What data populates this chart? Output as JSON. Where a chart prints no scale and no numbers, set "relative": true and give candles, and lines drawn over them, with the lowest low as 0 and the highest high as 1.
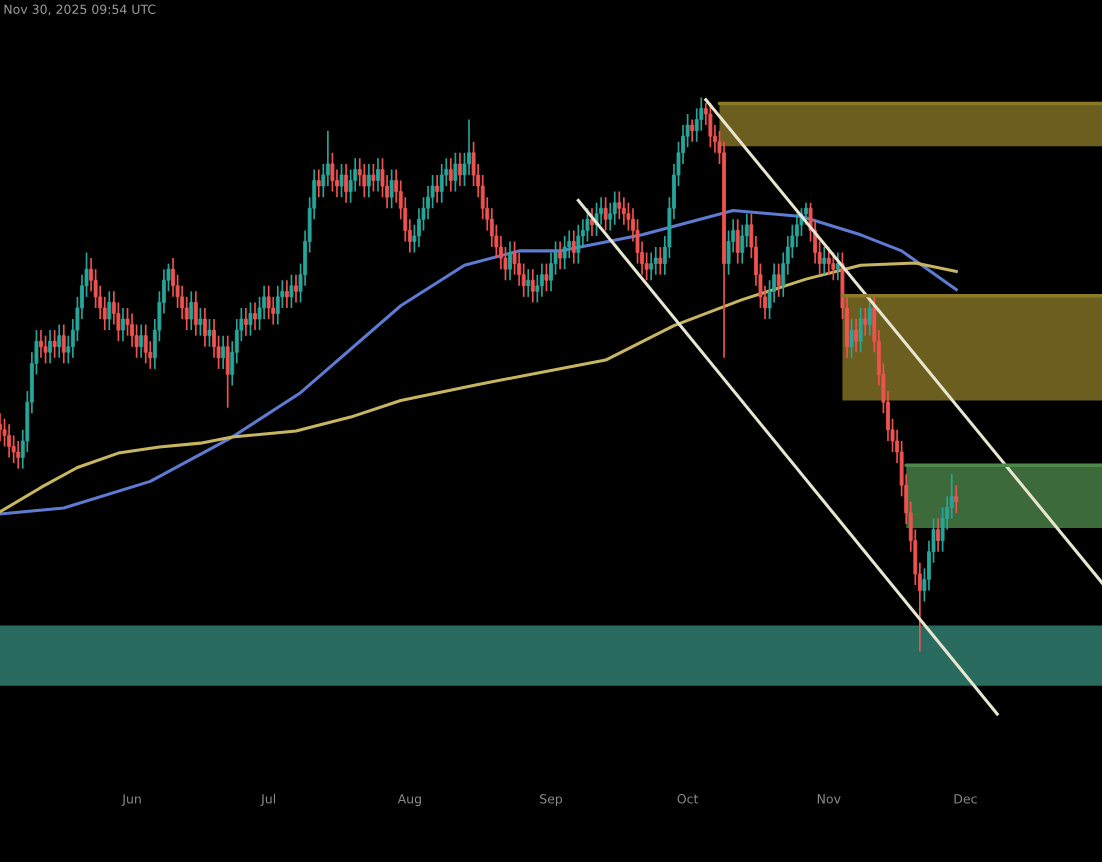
{
  "chart_data": {
    "type": "candlestick",
    "relative": true,
    "annotations": [
      "Nov 30, 2025 09:54 UTC"
    ],
    "grid": false,
    "tick_labels": "x",
    "colors": [
      "#ef5350",
      "#ef5350",
      "#ef5350",
      "#ef5350",
      "#ef5350",
      "#26a69a",
      "#26a69a",
      "#26a69a",
      "#26a69a",
      "#ef5350",
      "#ef5350",
      "#26a69a",
      "#ef5350",
      "#26a69a",
      "#ef5350",
      "#26a69a",
      "#26a69a",
      "#26a69a",
      "#26a69a",
      "#26a69a",
      "#ef5350",
      "#ef5350",
      "#ef5350",
      "#ef5350",
      "#26a69a",
      "#ef5350",
      "#ef5350",
      "#26a69a",
      "#ef5350",
      "#ef5350",
      "#ef5350",
      "#26a69a",
      "#ef5350",
      "#ef5350",
      "#26a69a",
      "#26a69a",
      "#26a69a",
      "#26a69a",
      "#ef5350",
      "#ef5350",
      "#ef5350",
      "#ef5350",
      "#26a69a",
      "#ef5350",
      "#26a69a",
      "#ef5350",
      "#26a69a",
      "#ef5350",
      "#ef5350",
      "#26a69a",
      "#ef5350",
      "#26a69a",
      "#26a69a",
      "#26a69a",
      "#ef5350",
      "#26a69a",
      "#ef5350",
      "#26a69a",
      "#26a69a",
      "#ef5350",
      "#ef5350",
      "#26a69a",
      "#26a69a",
      "#ef5350",
      "#26a69a",
      "#ef5350",
      "#26a69a",
      "#26a69a",
      "#26a69a",
      "#26a69a",
      "#ef5350",
      "#26a69a",
      "#26a69a",
      "#ef5350",
      "#ef5350",
      "#26a69a",
      "#ef5350",
      "#26a69a",
      "#26a69a",
      "#ef5350",
      "#ef5350",
      "#26a69a",
      "#ef5350",
      "#26a69a",
      "#ef5350",
      "#ef5350",
      "#26a69a",
      "#ef5350",
      "#ef5350",
      "#ef5350",
      "#ef5350",
      "#26a69a",
      "#26a69a",
      "#26a69a",
      "#26a69a",
      "#26a69a",
      "#ef5350",
      "#26a69a",
      "#26a69a",
      "#ef5350",
      "#26a69a",
      "#ef5350",
      "#26a69a",
      "#26a69a",
      "#ef5350",
      "#ef5350",
      "#ef5350",
      "#ef5350",
      "#ef5350",
      "#ef5350",
      "#ef5350",
      "#ef5350",
      "#26a69a",
      "#ef5350",
      "#ef5350",
      "#ef5350",
      "#26a69a",
      "#ef5350",
      "#26a69a",
      "#26a69a",
      "#ef5350",
      "#26a69a",
      "#26a69a",
      "#ef5350",
      "#26a69a",
      "#26a69a",
      "#ef5350",
      "#26a69a",
      "#26a69a",
      "#26a69a",
      "#ef5350",
      "#26a69a",
      "#26a69a",
      "#ef5350",
      "#26a69a",
      "#26a69a",
      "#ef5350",
      "#ef5350",
      "#ef5350",
      "#ef5350",
      "#ef5350",
      "#ef5350",
      "#ef5350",
      "#26a69a",
      "#26a69a",
      "#ef5350",
      "#26a69a",
      "#26a69a",
      "#26a69a",
      "#26a69a",
      "#26a69a",
      "#26a69a",
      "#ef5350",
      "#26a69a",
      "#26a69a",
      "#ef5350",
      "#ef5350",
      "#ef5350",
      "#ef5350",
      "#ef5350",
      "#26a69a",
      "#26a69a",
      "#ef5350",
      "#26a69a",
      "#26a69a",
      "#ef5350",
      "#ef5350",
      "#ef5350",
      "#ef5350",
      "#26a69a",
      "#26a69a",
      "#ef5350",
      "#26a69a",
      "#26a69a",
      "#26a69a",
      "#26a69a",
      "#26a69a",
      "#26a69a",
      "#ef5350",
      "#ef5350",
      "#ef5350",
      "#26a69a",
      "#ef5350",
      "#ef5350",
      "#26a69a",
      "#ef5350",
      "#ef5350",
      "#26a69a",
      "#ef5350",
      "#26a69a",
      "#ef5350",
      "#26a69a",
      "#ef5350",
      "#ef5350",
      "#ef5350",
      "#ef5350",
      "#ef5350",
      "#ef5350",
      "#ef5350",
      "#ef5350",
      "#ef5350",
      "#ef5350",
      "#ef5350",
      "#26a69a",
      "#26a69a",
      "#26a69a",
      "#ef5350",
      "#26a69a",
      "#26a69a",
      "#26a69a",
      "#ef5350"
    ],
    "xlim": [
      "2025-05-03",
      "2025-12-31"
    ],
    "xticks": [
      {
        "value": "2025-06-01",
        "label": "Jun"
      },
      {
        "value": "2025-07-01",
        "label": "Jul"
      },
      {
        "value": "2025-08-01",
        "label": "Aug"
      },
      {
        "value": "2025-09-01",
        "label": "Sep"
      },
      {
        "value": "2025-10-01",
        "label": "Oct"
      },
      {
        "value": "2025-11-01",
        "label": "Nov"
      },
      {
        "value": "2025-12-01",
        "label": "Dec"
      }
    ],
    "x": [
      "2025-05-03",
      "2025-05-04",
      "2025-05-05",
      "2025-05-06",
      "2025-05-07",
      "2025-05-08",
      "2025-05-09",
      "2025-05-10",
      "2025-05-11",
      "2025-05-12",
      "2025-05-13",
      "2025-05-14",
      "2025-05-15",
      "2025-05-16",
      "2025-05-17",
      "2025-05-18",
      "2025-05-19",
      "2025-05-20",
      "2025-05-21",
      "2025-05-22",
      "2025-05-23",
      "2025-05-24",
      "2025-05-25",
      "2025-05-26",
      "2025-05-27",
      "2025-05-28",
      "2025-05-29",
      "2025-05-30",
      "2025-05-31",
      "2025-06-01",
      "2025-06-02",
      "2025-06-03",
      "2025-06-04",
      "2025-06-05",
      "2025-06-06",
      "2025-06-07",
      "2025-06-08",
      "2025-06-09",
      "2025-06-10",
      "2025-06-11",
      "2025-06-12",
      "2025-06-13",
      "2025-06-14",
      "2025-06-15",
      "2025-06-16",
      "2025-06-17",
      "2025-06-18",
      "2025-06-19",
      "2025-06-20",
      "2025-06-21",
      "2025-06-22",
      "2025-06-23",
      "2025-06-24",
      "2025-06-25",
      "2025-06-26",
      "2025-06-27",
      "2025-06-28",
      "2025-06-29",
      "2025-06-30",
      "2025-07-01",
      "2025-07-02",
      "2025-07-03",
      "2025-07-04",
      "2025-07-05",
      "2025-07-06",
      "2025-07-07",
      "2025-07-08",
      "2025-07-09",
      "2025-07-10",
      "2025-07-11",
      "2025-07-12",
      "2025-07-13",
      "2025-07-14",
      "2025-07-15",
      "2025-07-16",
      "2025-07-17",
      "2025-07-18",
      "2025-07-19",
      "2025-07-20",
      "2025-07-21",
      "2025-07-22",
      "2025-07-23",
      "2025-07-24",
      "2025-07-25",
      "2025-07-26",
      "2025-07-27",
      "2025-07-28",
      "2025-07-29",
      "2025-07-30",
      "2025-07-31",
      "2025-08-01",
      "2025-08-02",
      "2025-08-03",
      "2025-08-04",
      "2025-08-05",
      "2025-08-06",
      "2025-08-07",
      "2025-08-08",
      "2025-08-09",
      "2025-08-10",
      "2025-08-11",
      "2025-08-12",
      "2025-08-13",
      "2025-08-14",
      "2025-08-15",
      "2025-08-16",
      "2025-08-17",
      "2025-08-18",
      "2025-08-19",
      "2025-08-20",
      "2025-08-21",
      "2025-08-22",
      "2025-08-23",
      "2025-08-24",
      "2025-08-25",
      "2025-08-26",
      "2025-08-27",
      "2025-08-28",
      "2025-08-29",
      "2025-08-30",
      "2025-08-31",
      "2025-09-01",
      "2025-09-02",
      "2025-09-03",
      "2025-09-04",
      "2025-09-05",
      "2025-09-06",
      "2025-09-07",
      "2025-09-08",
      "2025-09-09",
      "2025-09-10",
      "2025-09-11",
      "2025-09-12",
      "2025-09-13",
      "2025-09-14",
      "2025-09-15",
      "2025-09-16",
      "2025-09-17",
      "2025-09-18",
      "2025-09-19",
      "2025-09-20",
      "2025-09-21",
      "2025-09-22",
      "2025-09-23",
      "2025-09-24",
      "2025-09-25",
      "2025-09-26",
      "2025-09-27",
      "2025-09-28",
      "2025-09-29",
      "2025-09-30",
      "2025-10-01",
      "2025-10-02",
      "2025-10-03",
      "2025-10-04",
      "2025-10-05",
      "2025-10-06",
      "2025-10-07",
      "2025-10-08",
      "2025-10-09",
      "2025-10-10",
      "2025-10-11",
      "2025-10-12",
      "2025-10-13",
      "2025-10-14",
      "2025-10-15",
      "2025-10-16",
      "2025-10-17",
      "2025-10-18",
      "2025-10-19",
      "2025-10-20",
      "2025-10-21",
      "2025-10-22",
      "2025-10-23",
      "2025-10-24",
      "2025-10-25",
      "2025-10-26",
      "2025-10-27",
      "2025-10-28",
      "2025-10-29",
      "2025-10-30",
      "2025-10-31",
      "2025-11-01",
      "2025-11-02",
      "2025-11-03",
      "2025-11-04",
      "2025-11-05",
      "2025-11-06",
      "2025-11-07",
      "2025-11-08",
      "2025-11-09",
      "2025-11-10",
      "2025-11-11",
      "2025-11-12",
      "2025-11-13",
      "2025-11-14",
      "2025-11-15",
      "2025-11-16",
      "2025-11-17",
      "2025-11-18",
      "2025-11-19",
      "2025-11-20",
      "2025-11-21",
      "2025-11-22",
      "2025-11-23",
      "2025-11-24",
      "2025-11-25",
      "2025-11-26",
      "2025-11-27",
      "2025-11-28",
      "2025-11-29"
    ],
    "ohlc": [
      [
        0.41,
        0.43,
        0.38,
        0.4
      ],
      [
        0.4,
        0.42,
        0.37,
        0.39
      ],
      [
        0.39,
        0.41,
        0.35,
        0.37
      ],
      [
        0.37,
        0.39,
        0.34,
        0.36
      ],
      [
        0.36,
        0.38,
        0.33,
        0.35
      ],
      [
        0.35,
        0.4,
        0.33,
        0.38
      ],
      [
        0.38,
        0.47,
        0.36,
        0.45
      ],
      [
        0.45,
        0.54,
        0.43,
        0.52
      ],
      [
        0.52,
        0.58,
        0.5,
        0.56
      ],
      [
        0.56,
        0.58,
        0.53,
        0.55
      ],
      [
        0.55,
        0.57,
        0.52,
        0.54
      ],
      [
        0.54,
        0.58,
        0.52,
        0.56
      ],
      [
        0.56,
        0.58,
        0.53,
        0.55
      ],
      [
        0.55,
        0.59,
        0.53,
        0.57
      ],
      [
        0.57,
        0.59,
        0.52,
        0.54
      ],
      [
        0.54,
        0.57,
        0.52,
        0.55
      ],
      [
        0.55,
        0.6,
        0.53,
        0.58
      ],
      [
        0.58,
        0.64,
        0.56,
        0.62
      ],
      [
        0.62,
        0.68,
        0.6,
        0.66
      ],
      [
        0.66,
        0.72,
        0.64,
        0.69
      ],
      [
        0.69,
        0.71,
        0.65,
        0.67
      ],
      [
        0.67,
        0.69,
        0.62,
        0.64
      ],
      [
        0.64,
        0.66,
        0.6,
        0.62
      ],
      [
        0.62,
        0.64,
        0.58,
        0.6
      ],
      [
        0.6,
        0.65,
        0.58,
        0.63
      ],
      [
        0.63,
        0.65,
        0.59,
        0.61
      ],
      [
        0.61,
        0.63,
        0.56,
        0.58
      ],
      [
        0.58,
        0.62,
        0.56,
        0.6
      ],
      [
        0.6,
        0.62,
        0.57,
        0.59
      ],
      [
        0.59,
        0.61,
        0.55,
        0.57
      ],
      [
        0.57,
        0.59,
        0.53,
        0.55
      ],
      [
        0.55,
        0.59,
        0.53,
        0.57
      ],
      [
        0.57,
        0.59,
        0.52,
        0.54
      ],
      [
        0.54,
        0.56,
        0.51,
        0.53
      ],
      [
        0.53,
        0.6,
        0.51,
        0.58
      ],
      [
        0.58,
        0.65,
        0.56,
        0.63
      ],
      [
        0.63,
        0.69,
        0.61,
        0.67
      ],
      [
        0.67,
        0.7,
        0.65,
        0.69
      ],
      [
        0.69,
        0.71,
        0.64,
        0.66
      ],
      [
        0.66,
        0.68,
        0.62,
        0.64
      ],
      [
        0.64,
        0.66,
        0.6,
        0.62
      ],
      [
        0.62,
        0.64,
        0.58,
        0.6
      ],
      [
        0.6,
        0.65,
        0.58,
        0.63
      ],
      [
        0.63,
        0.65,
        0.57,
        0.59
      ],
      [
        0.59,
        0.62,
        0.57,
        0.6
      ],
      [
        0.6,
        0.62,
        0.55,
        0.57
      ],
      [
        0.57,
        0.6,
        0.55,
        0.58
      ],
      [
        0.58,
        0.6,
        0.53,
        0.55
      ],
      [
        0.55,
        0.57,
        0.51,
        0.53
      ],
      [
        0.53,
        0.57,
        0.51,
        0.55
      ],
      [
        0.55,
        0.57,
        0.44,
        0.5
      ],
      [
        0.5,
        0.56,
        0.48,
        0.54
      ],
      [
        0.54,
        0.6,
        0.52,
        0.58
      ],
      [
        0.58,
        0.62,
        0.56,
        0.6
      ],
      [
        0.6,
        0.62,
        0.57,
        0.59
      ],
      [
        0.59,
        0.63,
        0.57,
        0.61
      ],
      [
        0.61,
        0.63,
        0.58,
        0.6
      ],
      [
        0.6,
        0.64,
        0.58,
        0.62
      ],
      [
        0.62,
        0.66,
        0.6,
        0.64
      ],
      [
        0.64,
        0.66,
        0.6,
        0.62
      ],
      [
        0.62,
        0.64,
        0.59,
        0.61
      ],
      [
        0.61,
        0.66,
        0.59,
        0.64
      ],
      [
        0.64,
        0.67,
        0.62,
        0.65
      ],
      [
        0.65,
        0.67,
        0.62,
        0.64
      ],
      [
        0.64,
        0.68,
        0.62,
        0.66
      ],
      [
        0.66,
        0.68,
        0.63,
        0.65
      ],
      [
        0.65,
        0.7,
        0.63,
        0.68
      ],
      [
        0.68,
        0.76,
        0.66,
        0.74
      ],
      [
        0.74,
        0.82,
        0.72,
        0.8
      ],
      [
        0.8,
        0.87,
        0.78,
        0.85
      ],
      [
        0.85,
        0.87,
        0.82,
        0.84
      ],
      [
        0.84,
        0.88,
        0.82,
        0.86
      ],
      [
        0.86,
        0.94,
        0.84,
        0.88
      ],
      [
        0.88,
        0.9,
        0.83,
        0.85
      ],
      [
        0.85,
        0.87,
        0.82,
        0.84
      ],
      [
        0.84,
        0.88,
        0.82,
        0.86
      ],
      [
        0.86,
        0.88,
        0.81,
        0.83
      ],
      [
        0.83,
        0.87,
        0.81,
        0.85
      ],
      [
        0.85,
        0.89,
        0.83,
        0.87
      ],
      [
        0.87,
        0.89,
        0.84,
        0.86
      ],
      [
        0.86,
        0.88,
        0.82,
        0.84
      ],
      [
        0.84,
        0.88,
        0.82,
        0.86
      ],
      [
        0.86,
        0.88,
        0.83,
        0.85
      ],
      [
        0.85,
        0.89,
        0.83,
        0.87
      ],
      [
        0.87,
        0.89,
        0.82,
        0.84
      ],
      [
        0.84,
        0.86,
        0.8,
        0.82
      ],
      [
        0.82,
        0.87,
        0.8,
        0.85
      ],
      [
        0.85,
        0.87,
        0.81,
        0.83
      ],
      [
        0.83,
        0.85,
        0.78,
        0.8
      ],
      [
        0.8,
        0.82,
        0.74,
        0.76
      ],
      [
        0.76,
        0.78,
        0.72,
        0.74
      ],
      [
        0.74,
        0.77,
        0.72,
        0.75
      ],
      [
        0.75,
        0.8,
        0.73,
        0.78
      ],
      [
        0.78,
        0.82,
        0.76,
        0.8
      ],
      [
        0.8,
        0.84,
        0.78,
        0.82
      ],
      [
        0.82,
        0.86,
        0.8,
        0.84
      ],
      [
        0.84,
        0.86,
        0.81,
        0.83
      ],
      [
        0.83,
        0.88,
        0.81,
        0.86
      ],
      [
        0.86,
        0.89,
        0.84,
        0.87
      ],
      [
        0.87,
        0.89,
        0.83,
        0.85
      ],
      [
        0.85,
        0.9,
        0.83,
        0.88
      ],
      [
        0.88,
        0.9,
        0.84,
        0.86
      ],
      [
        0.86,
        0.9,
        0.84,
        0.88
      ],
      [
        0.88,
        0.96,
        0.86,
        0.9
      ],
      [
        0.9,
        0.92,
        0.84,
        0.86
      ],
      [
        0.86,
        0.88,
        0.82,
        0.84
      ],
      [
        0.84,
        0.86,
        0.78,
        0.8
      ],
      [
        0.8,
        0.82,
        0.76,
        0.78
      ],
      [
        0.78,
        0.8,
        0.73,
        0.75
      ],
      [
        0.75,
        0.77,
        0.71,
        0.73
      ],
      [
        0.73,
        0.75,
        0.69,
        0.71
      ],
      [
        0.71,
        0.73,
        0.67,
        0.69
      ],
      [
        0.69,
        0.74,
        0.67,
        0.72
      ],
      [
        0.72,
        0.74,
        0.68,
        0.7
      ],
      [
        0.7,
        0.72,
        0.66,
        0.68
      ],
      [
        0.68,
        0.7,
        0.64,
        0.66
      ],
      [
        0.66,
        0.69,
        0.64,
        0.67
      ],
      [
        0.67,
        0.69,
        0.63,
        0.65
      ],
      [
        0.65,
        0.68,
        0.63,
        0.66
      ],
      [
        0.66,
        0.7,
        0.64,
        0.68
      ],
      [
        0.68,
        0.7,
        0.65,
        0.67
      ],
      [
        0.67,
        0.72,
        0.65,
        0.7
      ],
      [
        0.7,
        0.74,
        0.68,
        0.72
      ],
      [
        0.72,
        0.74,
        0.69,
        0.71
      ],
      [
        0.71,
        0.75,
        0.69,
        0.73
      ],
      [
        0.73,
        0.76,
        0.71,
        0.74
      ],
      [
        0.74,
        0.76,
        0.7,
        0.72
      ],
      [
        0.72,
        0.77,
        0.7,
        0.75
      ],
      [
        0.75,
        0.78,
        0.73,
        0.76
      ],
      [
        0.76,
        0.8,
        0.74,
        0.78
      ],
      [
        0.78,
        0.8,
        0.75,
        0.77
      ],
      [
        0.77,
        0.81,
        0.75,
        0.79
      ],
      [
        0.79,
        0.82,
        0.77,
        0.8
      ],
      [
        0.8,
        0.82,
        0.76,
        0.78
      ],
      [
        0.78,
        0.81,
        0.76,
        0.79
      ],
      [
        0.79,
        0.83,
        0.77,
        0.81
      ],
      [
        0.81,
        0.83,
        0.78,
        0.8
      ],
      [
        0.8,
        0.82,
        0.77,
        0.79
      ],
      [
        0.79,
        0.81,
        0.76,
        0.78
      ],
      [
        0.78,
        0.8,
        0.74,
        0.76
      ],
      [
        0.76,
        0.78,
        0.7,
        0.72
      ],
      [
        0.72,
        0.74,
        0.68,
        0.7
      ],
      [
        0.7,
        0.72,
        0.67,
        0.69
      ],
      [
        0.69,
        0.72,
        0.67,
        0.7
      ],
      [
        0.7,
        0.73,
        0.68,
        0.71
      ],
      [
        0.71,
        0.73,
        0.68,
        0.7
      ],
      [
        0.7,
        0.75,
        0.68,
        0.73
      ],
      [
        0.73,
        0.82,
        0.71,
        0.8
      ],
      [
        0.8,
        0.88,
        0.78,
        0.86
      ],
      [
        0.86,
        0.92,
        0.84,
        0.9
      ],
      [
        0.9,
        0.95,
        0.88,
        0.93
      ],
      [
        0.93,
        0.97,
        0.91,
        0.95
      ],
      [
        0.95,
        0.96,
        0.92,
        0.94
      ],
      [
        0.94,
        0.98,
        0.92,
        0.96
      ],
      [
        0.96,
        1.0,
        0.94,
        0.98
      ],
      [
        0.98,
        0.99,
        0.95,
        0.97
      ],
      [
        0.97,
        0.99,
        0.91,
        0.93
      ],
      [
        0.93,
        0.95,
        0.9,
        0.92
      ],
      [
        0.92,
        0.94,
        0.88,
        0.9
      ],
      [
        0.9,
        0.92,
        0.53,
        0.7
      ],
      [
        0.7,
        0.76,
        0.68,
        0.74
      ],
      [
        0.74,
        0.78,
        0.72,
        0.76
      ],
      [
        0.76,
        0.78,
        0.7,
        0.72
      ],
      [
        0.72,
        0.77,
        0.7,
        0.75
      ],
      [
        0.75,
        0.79,
        0.73,
        0.77
      ],
      [
        0.77,
        0.79,
        0.71,
        0.73
      ],
      [
        0.73,
        0.75,
        0.66,
        0.68
      ],
      [
        0.68,
        0.7,
        0.62,
        0.64
      ],
      [
        0.64,
        0.66,
        0.6,
        0.62
      ],
      [
        0.62,
        0.67,
        0.6,
        0.65
      ],
      [
        0.65,
        0.7,
        0.63,
        0.68
      ],
      [
        0.68,
        0.7,
        0.64,
        0.66
      ],
      [
        0.66,
        0.72,
        0.64,
        0.7
      ],
      [
        0.7,
        0.75,
        0.68,
        0.73
      ],
      [
        0.73,
        0.77,
        0.71,
        0.75
      ],
      [
        0.75,
        0.79,
        0.73,
        0.77
      ],
      [
        0.77,
        0.8,
        0.75,
        0.79
      ],
      [
        0.79,
        0.81,
        0.77,
        0.8
      ],
      [
        0.8,
        0.81,
        0.74,
        0.76
      ],
      [
        0.76,
        0.78,
        0.7,
        0.72
      ],
      [
        0.72,
        0.74,
        0.68,
        0.7
      ],
      [
        0.7,
        0.73,
        0.68,
        0.71
      ],
      [
        0.71,
        0.73,
        0.68,
        0.7
      ],
      [
        0.7,
        0.72,
        0.67,
        0.69
      ],
      [
        0.69,
        0.72,
        0.67,
        0.7
      ],
      [
        0.7,
        0.72,
        0.6,
        0.62
      ],
      [
        0.62,
        0.64,
        0.53,
        0.55
      ],
      [
        0.55,
        0.6,
        0.53,
        0.58
      ],
      [
        0.58,
        0.6,
        0.54,
        0.56
      ],
      [
        0.56,
        0.62,
        0.54,
        0.6
      ],
      [
        0.6,
        0.62,
        0.57,
        0.59
      ],
      [
        0.59,
        0.64,
        0.57,
        0.62
      ],
      [
        0.62,
        0.64,
        0.54,
        0.56
      ],
      [
        0.56,
        0.58,
        0.48,
        0.5
      ],
      [
        0.5,
        0.52,
        0.43,
        0.45
      ],
      [
        0.45,
        0.47,
        0.38,
        0.4
      ],
      [
        0.4,
        0.42,
        0.36,
        0.38
      ],
      [
        0.38,
        0.4,
        0.34,
        0.36
      ],
      [
        0.36,
        0.38,
        0.28,
        0.3
      ],
      [
        0.3,
        0.32,
        0.23,
        0.25
      ],
      [
        0.25,
        0.27,
        0.18,
        0.2
      ],
      [
        0.2,
        0.22,
        0.12,
        0.14
      ],
      [
        0.14,
        0.16,
        0.0,
        0.11
      ],
      [
        0.11,
        0.15,
        0.09,
        0.13
      ],
      [
        0.13,
        0.2,
        0.11,
        0.18
      ],
      [
        0.18,
        0.24,
        0.16,
        0.22
      ],
      [
        0.22,
        0.24,
        0.18,
        0.2
      ],
      [
        0.2,
        0.26,
        0.18,
        0.24
      ],
      [
        0.24,
        0.28,
        0.22,
        0.26
      ],
      [
        0.26,
        0.32,
        0.24,
        0.28
      ],
      [
        0.28,
        0.3,
        0.25,
        0.27
      ]
    ],
    "bands": [
      {
        "axis": "y",
        "from": -0.062,
        "to": 0.047,
        "color": "#2a6b5f"
      }
    ],
    "series": [
      {
        "type": "line",
        "color": "#5c7bd1",
        "x": [
          "2025-05-03",
          "2025-05-17",
          "2025-06-05",
          "2025-06-23",
          "2025-07-08",
          "2025-07-30",
          "2025-08-13",
          "2025-08-25",
          "2025-09-03",
          "2025-09-21",
          "2025-10-11",
          "2025-10-26",
          "2025-11-08",
          "2025-11-17",
          "2025-11-29"
        ],
        "values": [
          0.248,
          0.259,
          0.307,
          0.387,
          0.467,
          0.624,
          0.697,
          0.723,
          0.723,
          0.752,
          0.796,
          0.785,
          0.752,
          0.723,
          0.653
        ]
      },
      {
        "type": "line",
        "color": "#c8b560",
        "x": [
          "2025-05-03",
          "2025-05-12",
          "2025-05-20",
          "2025-05-29",
          "2025-06-07",
          "2025-06-16",
          "2025-06-23",
          "2025-07-07",
          "2025-07-19",
          "2025-07-30",
          "2025-08-16",
          "2025-08-30",
          "2025-09-13",
          "2025-09-28",
          "2025-10-13",
          "2025-10-27",
          "2025-11-08",
          "2025-11-20",
          "2025-11-29"
        ],
        "values": [
          0.252,
          0.296,
          0.332,
          0.358,
          0.369,
          0.376,
          0.387,
          0.398,
          0.423,
          0.453,
          0.482,
          0.504,
          0.526,
          0.588,
          0.635,
          0.672,
          0.697,
          0.701,
          0.686
        ]
      },
      {
        "type": "line",
        "color": "#e8e6d0",
        "x": [
          "2025-10-05",
          "2025-12-31"
        ],
        "values": [
          0.996,
          0.124
        ]
      },
      {
        "type": "line",
        "color": "#e8e6d0",
        "x": [
          "2025-09-07",
          "2025-12-08"
        ],
        "values": [
          0.814,
          -0.113
        ]
      },
      {
        "type": "line",
        "color": "#8c7a28",
        "x": [
          "2025-10-08",
          "2025-12-31"
        ],
        "values": [
          0.989,
          0.989
        ],
        "lower": [
          0.912,
          0.912
        ],
        "upper": [
          0.989,
          0.989
        ]
      },
      {
        "type": "line",
        "color": "#8c7a28",
        "x": [
          "2025-11-04",
          "2025-12-31"
        ],
        "values": [
          0.642,
          0.642
        ],
        "lower": [
          0.453,
          0.453
        ],
        "upper": [
          0.642,
          0.642
        ]
      },
      {
        "type": "line",
        "color": "#508a4b",
        "x": [
          "2025-11-18",
          "2025-12-31"
        ],
        "values": [
          0.336,
          0.336
        ],
        "lower": [
          0.223,
          0.223
        ],
        "upper": [
          0.336,
          0.336
        ]
      }
    ]
  }
}
